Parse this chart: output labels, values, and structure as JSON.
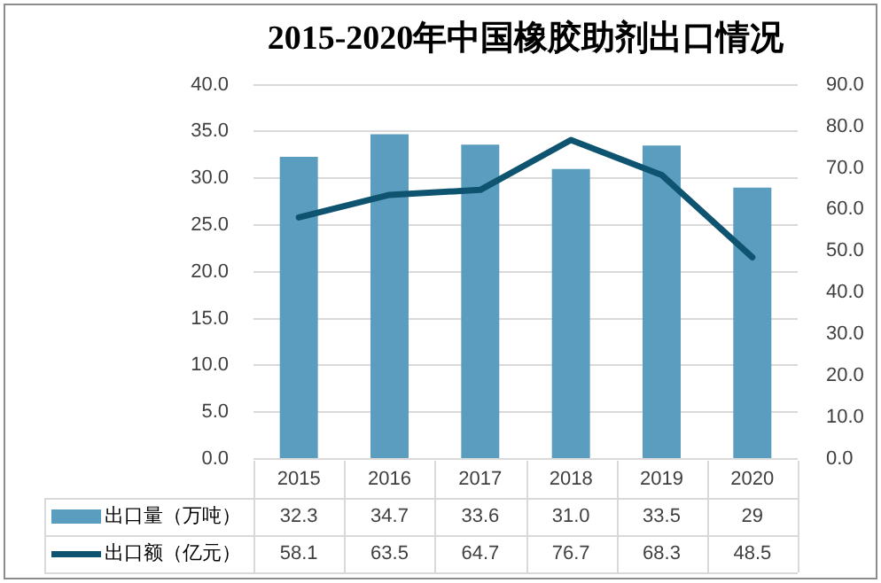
{
  "chart_data": {
    "type": "bar",
    "title": "2015-2020年中国橡胶助剂出口情况",
    "categories": [
      "2015",
      "2016",
      "2017",
      "2018",
      "2019",
      "2020"
    ],
    "series": [
      {
        "name": "出口量（万吨）",
        "color": "#5b9dbf",
        "values": [
          32.3,
          34.7,
          33.6,
          31.0,
          33.5,
          29
        ],
        "value_labels": [
          "32.3",
          "34.7",
          "33.6",
          "31.0",
          "33.5",
          "29"
        ]
      },
      {
        "name": "出口额（亿元）",
        "type": "line",
        "axis": "y2",
        "color": "#0e5470",
        "values": [
          58.1,
          63.5,
          64.7,
          76.7,
          68.3,
          48.5
        ],
        "value_labels": [
          "58.1",
          "63.5",
          "64.7",
          "76.7",
          "68.3",
          "48.5"
        ]
      }
    ],
    "ylim": [
      0,
      40
    ],
    "yticks": [
      {
        "value": 0,
        "label": "0.0"
      },
      {
        "value": 5,
        "label": "5.0"
      },
      {
        "value": 10,
        "label": "10.0"
      },
      {
        "value": 15,
        "label": "15.0"
      },
      {
        "value": 20,
        "label": "20.0"
      },
      {
        "value": 25,
        "label": "25.0"
      },
      {
        "value": 30,
        "label": "30.0"
      },
      {
        "value": 35,
        "label": "35.0"
      },
      {
        "value": 40,
        "label": "40.0"
      }
    ],
    "y2lim": [
      0,
      90
    ],
    "y2ticks": [
      {
        "value": 0,
        "label": "0.0"
      },
      {
        "value": 10,
        "label": "10.0"
      },
      {
        "value": 20,
        "label": "20.0"
      },
      {
        "value": 30,
        "label": "30.0"
      },
      {
        "value": 40,
        "label": "40.0"
      },
      {
        "value": 50,
        "label": "50.0"
      },
      {
        "value": 60,
        "label": "60.0"
      },
      {
        "value": 70,
        "label": "70.0"
      },
      {
        "value": 80,
        "label": "80.0"
      },
      {
        "value": 90,
        "label": "90.0"
      }
    ],
    "grid": "y",
    "legend": "bottom left",
    "marker": "none",
    "line_style": "solid"
  }
}
